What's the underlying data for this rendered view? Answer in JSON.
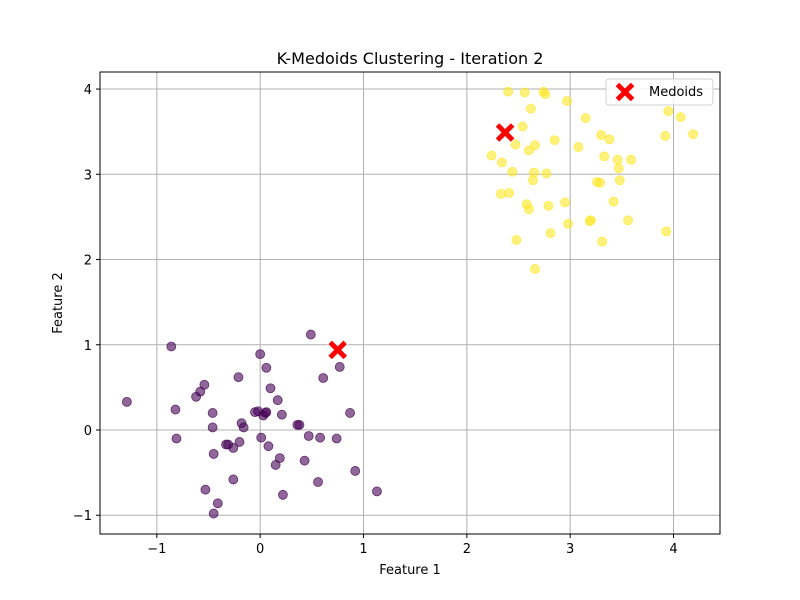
{
  "chart_data": {
    "type": "scatter",
    "title": "K-Medoids Clustering - Iteration 2",
    "xlabel": "Feature 1",
    "ylabel": "Feature 2",
    "xlim": [
      -1.55,
      4.45
    ],
    "ylim": [
      -1.22,
      4.2
    ],
    "xticks": [
      -1,
      0,
      1,
      2,
      3,
      4
    ],
    "yticks": [
      -1,
      0,
      1,
      2,
      3,
      4
    ],
    "xtick_labels": [
      "−1",
      "0",
      "1",
      "2",
      "3",
      "4"
    ],
    "ytick_labels": [
      "−1",
      "0",
      "1",
      "2",
      "3",
      "4"
    ],
    "grid": true,
    "legend": {
      "position": "top-right",
      "entries": [
        "Medoids"
      ]
    },
    "colors": {
      "cluster_0": "#440154",
      "cluster_1": "#fde725",
      "medoid": "#ff0000",
      "grid": "#b0b0b0"
    },
    "series": [
      {
        "cluster": 0,
        "points": [
          [
            -1.29,
            0.33
          ],
          [
            -0.86,
            0.98
          ],
          [
            -0.82,
            0.24
          ],
          [
            -0.81,
            -0.1
          ],
          [
            -0.62,
            0.39
          ],
          [
            -0.58,
            0.45
          ],
          [
            -0.54,
            0.53
          ],
          [
            -0.53,
            -0.7
          ],
          [
            -0.46,
            0.2
          ],
          [
            -0.46,
            0.03
          ],
          [
            -0.45,
            -0.28
          ],
          [
            -0.45,
            -0.98
          ],
          [
            -0.41,
            -0.86
          ],
          [
            -0.33,
            -0.17
          ],
          [
            -0.31,
            -0.17
          ],
          [
            -0.26,
            -0.58
          ],
          [
            -0.26,
            -0.21
          ],
          [
            -0.21,
            0.62
          ],
          [
            -0.2,
            -0.14
          ],
          [
            -0.18,
            0.08
          ],
          [
            -0.16,
            0.03
          ],
          [
            -0.05,
            0.21
          ],
          [
            -0.02,
            0.22
          ],
          [
            0.0,
            0.89
          ],
          [
            0.01,
            -0.09
          ],
          [
            0.03,
            0.17
          ],
          [
            0.05,
            0.2
          ],
          [
            0.06,
            0.21
          ],
          [
            0.06,
            0.73
          ],
          [
            0.08,
            -0.19
          ],
          [
            0.1,
            0.49
          ],
          [
            0.15,
            -0.41
          ],
          [
            0.17,
            0.35
          ],
          [
            0.19,
            -0.33
          ],
          [
            0.21,
            0.18
          ],
          [
            0.22,
            -0.76
          ],
          [
            0.36,
            0.06
          ],
          [
            0.38,
            0.06
          ],
          [
            0.43,
            -0.36
          ],
          [
            0.47,
            -0.07
          ],
          [
            0.49,
            1.12
          ],
          [
            0.56,
            -0.61
          ],
          [
            0.58,
            -0.09
          ],
          [
            0.61,
            0.61
          ],
          [
            0.74,
            -0.1
          ],
          [
            0.77,
            0.74
          ],
          [
            0.87,
            0.2
          ],
          [
            0.92,
            -0.48
          ],
          [
            1.13,
            -0.72
          ]
        ]
      },
      {
        "cluster": 1,
        "points": [
          [
            2.24,
            3.22
          ],
          [
            2.33,
            2.77
          ],
          [
            2.34,
            3.14
          ],
          [
            2.4,
            3.97
          ],
          [
            2.41,
            2.78
          ],
          [
            2.44,
            3.03
          ],
          [
            2.47,
            3.35
          ],
          [
            2.48,
            2.23
          ],
          [
            2.54,
            3.56
          ],
          [
            2.56,
            3.96
          ],
          [
            2.58,
            2.65
          ],
          [
            2.6,
            3.28
          ],
          [
            2.6,
            2.59
          ],
          [
            2.62,
            3.77
          ],
          [
            2.64,
            2.93
          ],
          [
            2.65,
            3.02
          ],
          [
            2.66,
            3.34
          ],
          [
            2.66,
            1.89
          ],
          [
            2.74,
            3.97
          ],
          [
            2.76,
            3.94
          ],
          [
            2.77,
            3.01
          ],
          [
            2.79,
            2.63
          ],
          [
            2.81,
            2.31
          ],
          [
            2.85,
            3.4
          ],
          [
            2.95,
            2.67
          ],
          [
            2.97,
            3.86
          ],
          [
            2.98,
            2.42
          ],
          [
            3.08,
            3.32
          ],
          [
            3.15,
            3.66
          ],
          [
            3.19,
            2.45
          ],
          [
            3.2,
            2.46
          ],
          [
            3.26,
            2.91
          ],
          [
            3.29,
            2.9
          ],
          [
            3.3,
            3.46
          ],
          [
            3.31,
            2.21
          ],
          [
            3.33,
            3.21
          ],
          [
            3.38,
            3.41
          ],
          [
            3.42,
            2.68
          ],
          [
            3.46,
            3.17
          ],
          [
            3.47,
            3.07
          ],
          [
            3.48,
            2.93
          ],
          [
            3.56,
            2.46
          ],
          [
            3.59,
            3.17
          ],
          [
            3.92,
            3.45
          ],
          [
            3.93,
            2.33
          ],
          [
            3.95,
            3.74
          ],
          [
            4.07,
            3.67
          ],
          [
            4.19,
            3.47
          ]
        ]
      }
    ],
    "medoids": {
      "name": "Medoids",
      "points": [
        [
          0.75,
          0.94
        ],
        [
          2.37,
          3.49
        ]
      ]
    }
  }
}
